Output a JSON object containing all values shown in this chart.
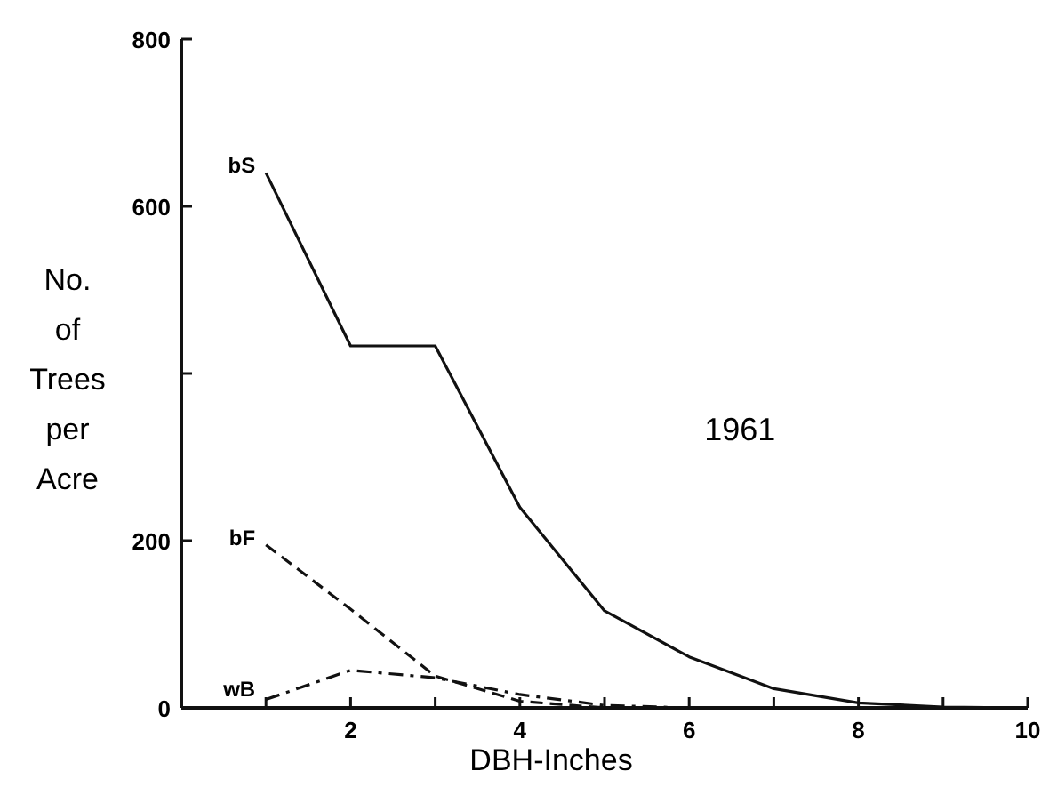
{
  "chart_data": {
    "type": "line",
    "xlabel": "DBH-Inches",
    "ylabel": "No. of Trees per Acre",
    "x": [
      1,
      2,
      3,
      4,
      5,
      6,
      7,
      8,
      9,
      10
    ],
    "series": [
      {
        "name": "bS",
        "color": "#111111",
        "line_style": "solid",
        "values": [
          640,
          433,
          433,
          240,
          116,
          61,
          23,
          6,
          1,
          0
        ]
      },
      {
        "name": "bF",
        "color": "#111111",
        "line_style": "dashed",
        "x": [
          1,
          2,
          3,
          4,
          5
        ],
        "values": [
          195,
          118,
          38,
          8,
          0
        ]
      },
      {
        "name": "wB",
        "color": "#111111",
        "line_style": "dashdot",
        "x": [
          1,
          2,
          3,
          4,
          5,
          6
        ],
        "values": [
          10,
          45,
          36,
          16,
          3,
          0
        ]
      }
    ],
    "xlim": [
      0,
      10
    ],
    "xticks": [
      {
        "value": 1,
        "label": null
      },
      2,
      {
        "value": 3,
        "label": null
      },
      4,
      {
        "value": 5,
        "label": null
      },
      6,
      {
        "value": 7,
        "label": null
      },
      8,
      {
        "value": 9,
        "label": null
      },
      10
    ],
    "ylim": [
      0,
      800
    ],
    "yticks": [
      0,
      200,
      {
        "value": 400,
        "label": null
      },
      600,
      800
    ],
    "marker": "none",
    "annotations": [
      "1961"
    ]
  }
}
